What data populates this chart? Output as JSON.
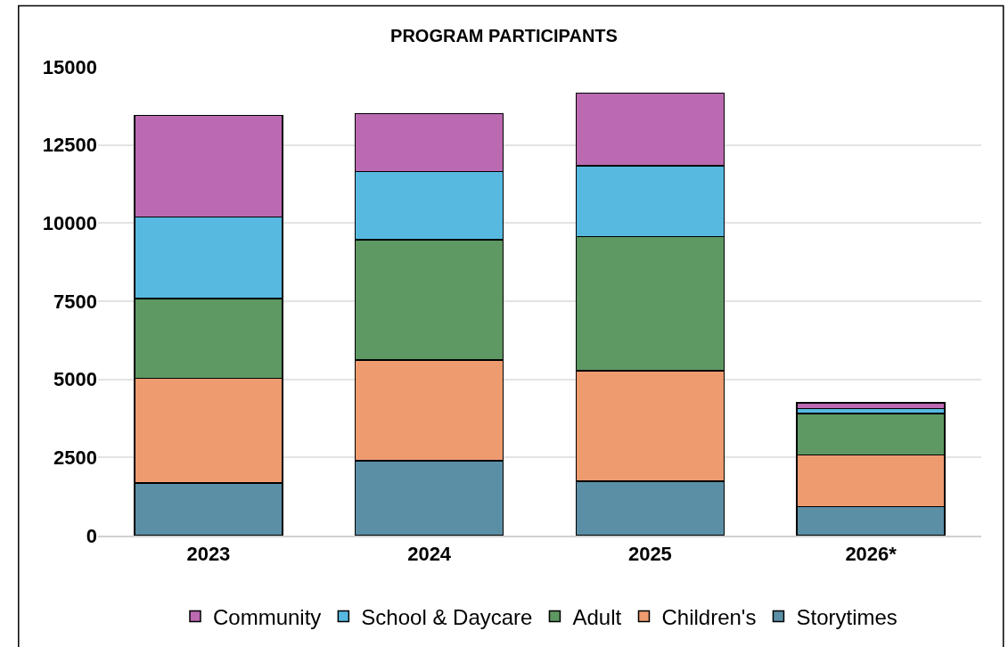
{
  "chart_data": {
    "type": "bar",
    "title": "PROGRAM PARTICIPANTS",
    "stacked": true,
    "categories": [
      "2023",
      "2024",
      "2025",
      "2026*"
    ],
    "series": [
      {
        "name": "Storytimes",
        "color": "#5b8fa6",
        "values": [
          1680,
          2390,
          1740,
          930
        ]
      },
      {
        "name": "Children's",
        "color": "#ee9b70",
        "values": [
          3350,
          3230,
          3540,
          1650
        ]
      },
      {
        "name": "Adult",
        "color": "#5e9863",
        "values": [
          2550,
          3850,
          4290,
          1330
        ]
      },
      {
        "name": "School & Daycare",
        "color": "#57b9e0",
        "values": [
          2610,
          2180,
          2260,
          150
        ]
      },
      {
        "name": "Community",
        "color": "#bb6ab2",
        "values": [
          3260,
          1860,
          2330,
          190
        ]
      }
    ],
    "ylim": [
      0,
      15000
    ],
    "yticks": [
      0,
      2500,
      5000,
      7500,
      10000,
      12500,
      15000
    ],
    "grid": "y",
    "legend": "bottom"
  }
}
